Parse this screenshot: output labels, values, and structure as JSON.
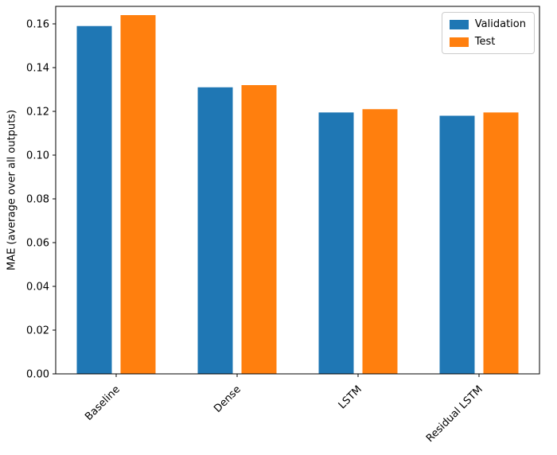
{
  "chart_data": {
    "type": "bar",
    "title": "",
    "xlabel": "",
    "ylabel": "MAE (average over all outputs)",
    "categories": [
      "Baseline",
      "Dense",
      "LSTM",
      "Residual LSTM"
    ],
    "series": [
      {
        "name": "Validation",
        "color": "#1f77b4",
        "values": [
          0.159,
          0.131,
          0.1195,
          0.118
        ]
      },
      {
        "name": "Test",
        "color": "#ff7f0e",
        "values": [
          0.164,
          0.132,
          0.121,
          0.1195
        ]
      }
    ],
    "ylim": [
      0,
      0.168
    ],
    "yticks": [
      0.0,
      0.02,
      0.04,
      0.06,
      0.08,
      0.1,
      0.12,
      0.14,
      0.16
    ],
    "ytick_labels": [
      "0.00",
      "0.02",
      "0.04",
      "0.06",
      "0.08",
      "0.10",
      "0.12",
      "0.14",
      "0.16"
    ],
    "x_tick_rotation": 45,
    "grid": false,
    "legend_position": "upper right",
    "legend": {
      "validation_label": "Validation",
      "test_label": "Test"
    }
  }
}
